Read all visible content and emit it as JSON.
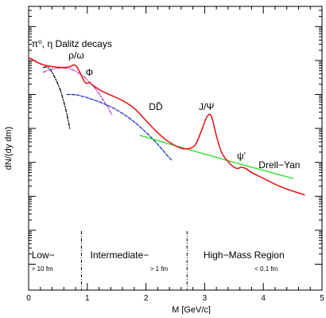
{
  "chart_data": {
    "type": "line",
    "title": "",
    "xlabel": "M [GeV/c]",
    "ylabel": "dN/(dy dm)",
    "xlim": [
      0,
      5
    ],
    "ylog": true,
    "y_tick_labels_shown": false,
    "xticks": [
      0,
      1,
      2,
      3,
      4,
      5
    ],
    "xtick_labels": [
      "0",
      "1",
      "2",
      "3",
      "4",
      "5"
    ],
    "series": [
      {
        "key": "total",
        "color": "#e31a1c",
        "style": "solid",
        "x": [
          0.0,
          0.05,
          0.1,
          0.2,
          0.3,
          0.4,
          0.5,
          0.6,
          0.7,
          0.75,
          0.78,
          0.82,
          0.87,
          0.92,
          0.97,
          1.01,
          1.04,
          1.08,
          1.15,
          1.25,
          1.4,
          1.6,
          1.8,
          2.0,
          2.2,
          2.4,
          2.6,
          2.75,
          2.85,
          2.95,
          3.02,
          3.08,
          3.13,
          3.2,
          3.3,
          3.45,
          3.55,
          3.62,
          3.7,
          3.8,
          4.0,
          4.3,
          4.7
        ],
        "y": [
          12,
          11,
          9.8,
          8.0,
          7.1,
          6.6,
          6.3,
          6.2,
          6.5,
          7.2,
          7.4,
          6.6,
          4.6,
          3.0,
          2.2,
          2.15,
          2.25,
          1.95,
          1.6,
          1.25,
          0.95,
          0.66,
          0.39,
          0.17,
          0.074,
          0.039,
          0.026,
          0.026,
          0.035,
          0.09,
          0.19,
          0.26,
          0.19,
          0.06,
          0.018,
          0.0085,
          0.0066,
          0.0072,
          0.0066,
          0.005,
          0.0034,
          0.0019,
          0.0011
        ]
      },
      {
        "key": "dalitz",
        "color": "#000000",
        "style": "dashdot",
        "x": [
          0.25,
          0.3,
          0.35,
          0.4,
          0.45,
          0.5,
          0.55,
          0.6,
          0.65,
          0.7
        ],
        "y": [
          6.2,
          6.5,
          5.8,
          4.5,
          3.1,
          2.0,
          1.2,
          0.6,
          0.27,
          0.1
        ]
      },
      {
        "key": "rho-tail",
        "color": "#cc33cc",
        "style": "dashdot",
        "x": [
          0.25,
          0.35,
          0.45,
          0.55,
          0.65,
          0.75,
          0.85,
          0.95,
          1.05,
          1.15,
          1.25,
          1.35,
          1.42
        ],
        "y": [
          4.5,
          5.3,
          5.8,
          6.0,
          5.9,
          5.3,
          4.3,
          3.2,
          2.2,
          1.4,
          0.78,
          0.42,
          0.25
        ]
      },
      {
        "key": "open-charm",
        "color": "#1a33cc",
        "style": "dashed",
        "x": [
          0.65,
          0.8,
          0.95,
          1.1,
          1.3,
          1.5,
          1.7,
          1.9,
          2.1,
          2.25,
          2.35,
          2.45
        ],
        "y": [
          1.0,
          0.98,
          0.85,
          0.7,
          0.52,
          0.35,
          0.21,
          0.11,
          0.052,
          0.027,
          0.017,
          0.011
        ]
      },
      {
        "key": "drell-yan",
        "color": "#22dd22",
        "style": "solid",
        "x": [
          1.9,
          2.5,
          3.0,
          3.5,
          4.0,
          4.5
        ],
        "y": [
          0.062,
          0.031,
          0.0175,
          0.01,
          0.0058,
          0.0034
        ]
      }
    ],
    "region_dividers_x": [
      0.9,
      2.7
    ],
    "annotations": [
      {
        "key": "dalitz",
        "text": "π⁰, η Dalitz decays",
        "x": 0.05,
        "y": 25
      },
      {
        "key": "rho-omega",
        "text": "ρ/ω",
        "x": 0.68,
        "y": 11.5
      },
      {
        "key": "phi",
        "text": "Φ",
        "x": 0.97,
        "y": 3.6
      },
      {
        "key": "ddbar",
        "text": "DD̄",
        "x": 2.05,
        "y": 0.35
      },
      {
        "key": "jpsi",
        "text": "J/Ψ",
        "x": 2.9,
        "y": 0.35
      },
      {
        "key": "psiprime",
        "text": "ψ’",
        "x": 3.55,
        "y": 0.0125
      },
      {
        "key": "drell-yan",
        "text": "Drell−Yan",
        "x": 3.92,
        "y": 0.0068
      }
    ],
    "regions": [
      {
        "key": "low",
        "label": "Low−",
        "sublabel": "> 10 fm",
        "label_x": 0.05,
        "sublabel_x": 0.05
      },
      {
        "key": "intermediate",
        "label": "Intermediate−",
        "sublabel": "> 1 fm",
        "label_x": 1.05,
        "sublabel_x": 2.07
      },
      {
        "key": "high",
        "label": "High−Mass Region",
        "sublabel": "< 0.1 fm",
        "label_x": 2.98,
        "sublabel_x": 3.85
      }
    ]
  }
}
